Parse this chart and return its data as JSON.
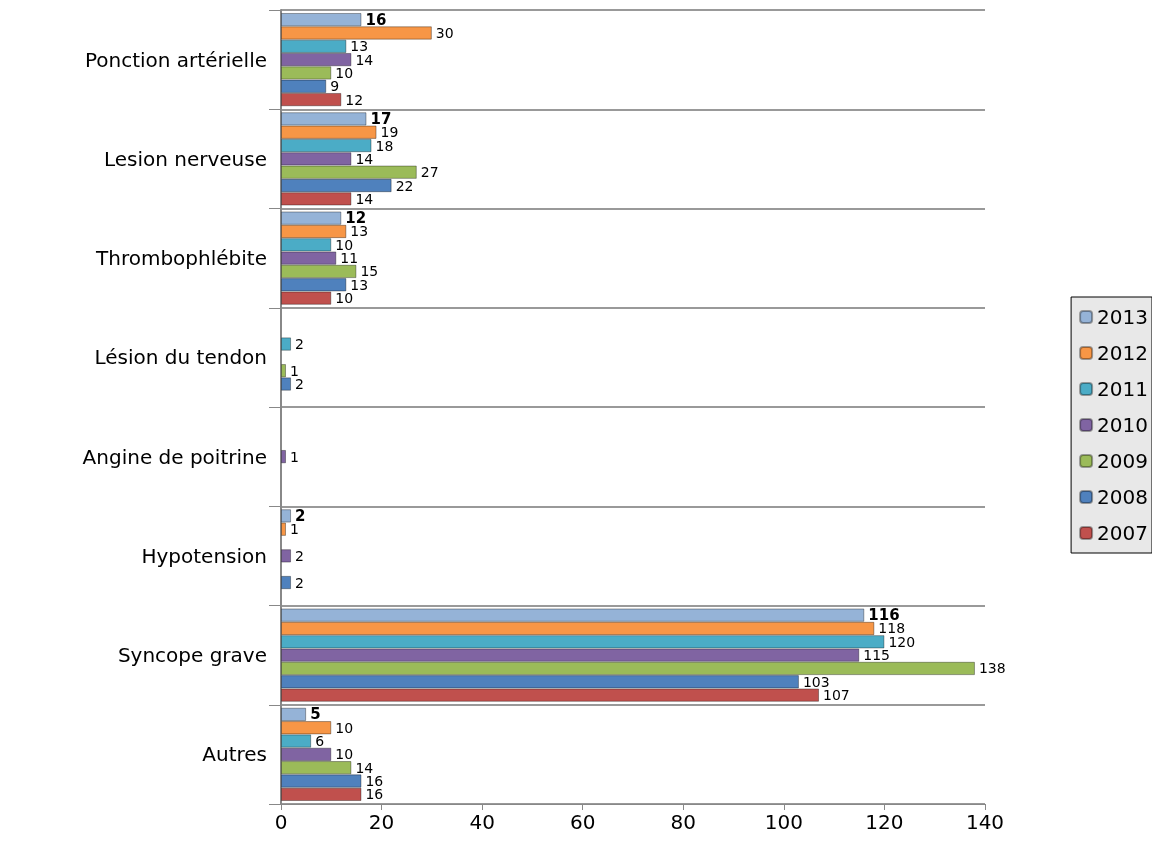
{
  "chart_data": {
    "type": "bar",
    "orientation": "horizontal",
    "categories": [
      "Ponction artérielle",
      "Lesion nerveuse",
      "Thrombophlébite",
      "Lésion du tendon",
      "Angine de poitrine",
      "Hypotension",
      "Syncope grave",
      "Autres"
    ],
    "series": [
      {
        "name": "2013",
        "color": "#95b3d7",
        "values": [
          16,
          17,
          12,
          null,
          null,
          2,
          116,
          5
        ]
      },
      {
        "name": "2012",
        "color": "#f79646",
        "values": [
          30,
          19,
          13,
          null,
          null,
          1,
          118,
          10
        ]
      },
      {
        "name": "2011",
        "color": "#4bacc6",
        "values": [
          13,
          18,
          10,
          2,
          null,
          null,
          120,
          6
        ]
      },
      {
        "name": "2010",
        "color": "#8064a2",
        "values": [
          14,
          14,
          11,
          null,
          1,
          2,
          115,
          10
        ]
      },
      {
        "name": "2009",
        "color": "#9bbb59",
        "values": [
          10,
          27,
          15,
          1,
          null,
          null,
          138,
          14
        ]
      },
      {
        "name": "2008",
        "color": "#4f81bd",
        "values": [
          9,
          22,
          13,
          2,
          null,
          2,
          103,
          16
        ]
      },
      {
        "name": "2007",
        "color": "#c0504d",
        "values": [
          12,
          14,
          10,
          null,
          null,
          null,
          107,
          16
        ]
      }
    ],
    "xlim": [
      0,
      140
    ],
    "xticks": [
      0,
      20,
      40,
      60,
      80,
      100,
      120,
      140
    ],
    "grid": "y",
    "legend": "right",
    "data_labels": true
  }
}
